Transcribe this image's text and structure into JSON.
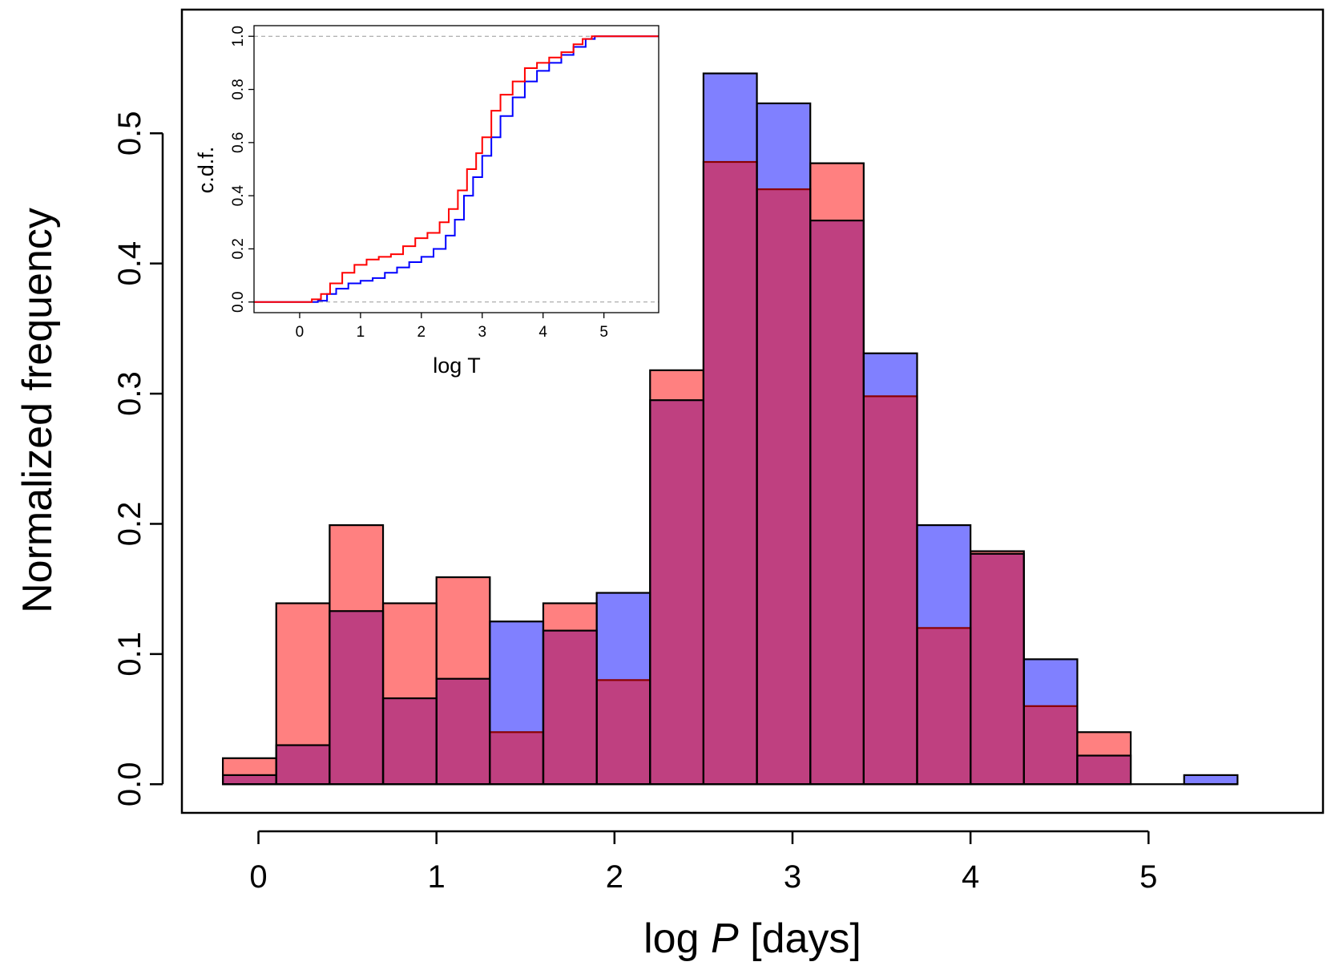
{
  "chart_data": [
    {
      "type": "bar",
      "xlabel": "log",
      "xlabel_italic": "P",
      "xlabel_unit": "[days]",
      "ylabel": "Normalized frequency",
      "xlim": [
        -0.43,
        5.98
      ],
      "ylim": [
        -0.022,
        0.595
      ],
      "xticks": [
        "0",
        "1",
        "2",
        "3",
        "4",
        "5"
      ],
      "yticks": [
        "0.0",
        "0.1",
        "0.2",
        "0.3",
        "0.4",
        "0.5"
      ],
      "bin_edges": [
        -0.2,
        0.1,
        0.4,
        0.7,
        1.0,
        1.3,
        1.6,
        1.9,
        2.2,
        2.5,
        2.8,
        3.1,
        3.4,
        3.7,
        4.0,
        4.3,
        4.6,
        4.9,
        5.2,
        5.5
      ],
      "series": [
        {
          "color": "#8080ff",
          "outline": "#000000",
          "values": [
            0.007,
            0.03,
            0.133,
            0.066,
            0.081,
            0.125,
            0.118,
            0.147,
            0.295,
            0.546,
            0.523,
            0.433,
            0.331,
            0.199,
            0.177,
            0.096,
            0.022,
            0.0,
            0.007
          ]
        },
        {
          "color": "#ff8080",
          "outline": "#8b0000",
          "values": [
            0.02,
            0.139,
            0.199,
            0.139,
            0.159,
            0.04,
            0.139,
            0.08,
            0.318,
            0.478,
            0.457,
            0.477,
            0.298,
            0.12,
            0.179,
            0.06,
            0.04,
            0.0,
            0.0
          ]
        }
      ],
      "overlap_color": "#bf4080"
    },
    {
      "type": "line",
      "xlabel": "log T",
      "ylabel": "c.d.f.",
      "xlim": [
        -0.75,
        5.9
      ],
      "ylim": [
        -0.04,
        1.04
      ],
      "xticks": [
        "0",
        "1",
        "2",
        "3",
        "4",
        "5"
      ],
      "yticks": [
        "0.0",
        "0.2",
        "0.4",
        "0.6",
        "0.8",
        "1.0"
      ],
      "reference_lines": [
        0.0,
        1.0
      ],
      "series": [
        {
          "color": "#ff0000",
          "x": [
            -0.75,
            0.0,
            0.2,
            0.35,
            0.5,
            0.7,
            0.9,
            1.1,
            1.3,
            1.5,
            1.7,
            1.9,
            2.1,
            2.3,
            2.45,
            2.6,
            2.75,
            2.9,
            3.0,
            3.15,
            3.3,
            3.5,
            3.7,
            3.9,
            4.1,
            4.3,
            4.5,
            4.65,
            4.8,
            5.0,
            5.9
          ],
          "y": [
            0.0,
            0.0,
            0.01,
            0.03,
            0.07,
            0.11,
            0.14,
            0.16,
            0.17,
            0.18,
            0.21,
            0.24,
            0.26,
            0.3,
            0.35,
            0.42,
            0.5,
            0.56,
            0.62,
            0.72,
            0.78,
            0.83,
            0.88,
            0.9,
            0.92,
            0.94,
            0.97,
            0.99,
            1.0,
            1.0,
            1.0
          ]
        },
        {
          "color": "#0000ff",
          "x": [
            -0.75,
            0.1,
            0.3,
            0.45,
            0.6,
            0.8,
            1.0,
            1.2,
            1.4,
            1.6,
            1.8,
            2.0,
            2.2,
            2.4,
            2.55,
            2.7,
            2.85,
            3.0,
            3.15,
            3.3,
            3.5,
            3.7,
            3.9,
            4.1,
            4.3,
            4.5,
            4.7,
            4.85,
            5.0,
            5.9
          ],
          "y": [
            0.0,
            0.0,
            0.005,
            0.03,
            0.05,
            0.07,
            0.08,
            0.09,
            0.11,
            0.13,
            0.15,
            0.17,
            0.2,
            0.25,
            0.31,
            0.4,
            0.47,
            0.55,
            0.62,
            0.7,
            0.77,
            0.83,
            0.87,
            0.9,
            0.93,
            0.96,
            0.99,
            1.0,
            1.0,
            1.0
          ]
        }
      ]
    }
  ]
}
